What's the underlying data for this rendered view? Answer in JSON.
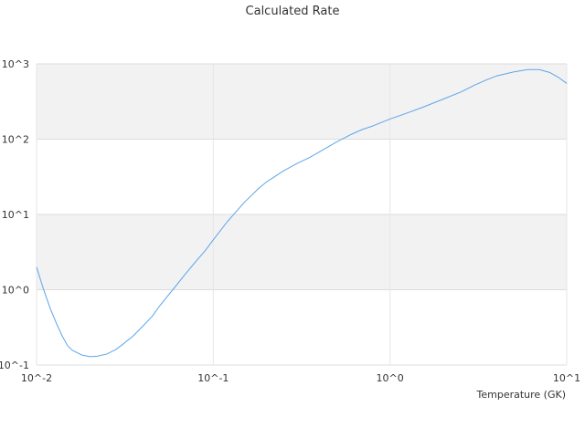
{
  "chart_data": {
    "type": "line",
    "title": "Calculated Rate",
    "xlabel": "Temperature (GK)",
    "ylabel": "",
    "x_scale": "log",
    "y_scale": "log",
    "xlim": [
      0.01,
      10
    ],
    "ylim": [
      0.1,
      1000
    ],
    "grid": "horizontal alternating bands",
    "legend": "none",
    "x_ticks": [
      {
        "value": 0.01,
        "label": "10^-2"
      },
      {
        "value": 0.1,
        "label": "10^-1"
      },
      {
        "value": 1,
        "label": "10^0"
      },
      {
        "value": 10,
        "label": "10^1"
      }
    ],
    "y_ticks": [
      {
        "value": 0.1,
        "label": "10^-1"
      },
      {
        "value": 1,
        "label": "10^0"
      },
      {
        "value": 10,
        "label": "10^1"
      },
      {
        "value": 100,
        "label": "10^2"
      },
      {
        "value": 1000,
        "label": "10^3"
      }
    ],
    "series": [
      {
        "color": "#5da5e8",
        "x": [
          0.01,
          0.011,
          0.012,
          0.013,
          0.014,
          0.015,
          0.016,
          0.018,
          0.02,
          0.022,
          0.025,
          0.028,
          0.03,
          0.035,
          0.04,
          0.045,
          0.05,
          0.06,
          0.07,
          0.08,
          0.09,
          0.1,
          0.12,
          0.15,
          0.18,
          0.2,
          0.25,
          0.3,
          0.35,
          0.4,
          0.5,
          0.6,
          0.7,
          0.8,
          1.0,
          1.2,
          1.5,
          2.0,
          2.5,
          3.0,
          3.5,
          4.0,
          5.0,
          6.0,
          7.0,
          8.0,
          9.0,
          10.0
        ],
        "y": [
          2.0,
          0.98,
          0.55,
          0.35,
          0.24,
          0.18,
          0.156,
          0.136,
          0.129,
          0.131,
          0.14,
          0.16,
          0.18,
          0.24,
          0.33,
          0.44,
          0.62,
          1.05,
          1.65,
          2.4,
          3.3,
          4.6,
          8.0,
          14.5,
          22.0,
          27.0,
          38.0,
          48.0,
          57.0,
          68.0,
          92.0,
          115.0,
          135.0,
          150.0,
          185.0,
          215.0,
          260.0,
          340.0,
          420.0,
          520.0,
          610.0,
          690.0,
          780.0,
          840.0,
          840.0,
          770.0,
          660.0,
          550.0
        ]
      }
    ]
  }
}
